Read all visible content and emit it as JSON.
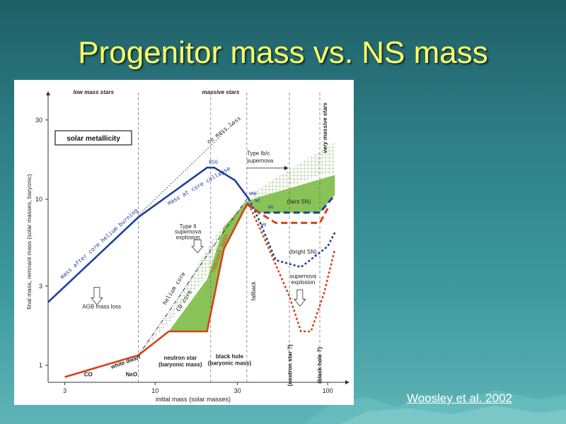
{
  "slide": {
    "title": "Progenitor mass vs. NS mass",
    "citation": "Woosley et al. 2002"
  },
  "colors": {
    "title": "#ffff66",
    "blue": "#1f3f9a",
    "red": "#d6431a",
    "green": "#7cbd45",
    "hatch": "#8bb56a"
  },
  "chart_data": {
    "type": "line",
    "xscale": "log",
    "yscale": "log",
    "xlim": [
      2.4,
      115
    ],
    "ylim": [
      0.79,
      39
    ],
    "xticks": [
      3,
      10,
      30,
      100
    ],
    "yticks": [
      1,
      3,
      10,
      30
    ],
    "xlabel": "initial mass (solar masses)",
    "ylabel": "final mass, remnant mass (solar masses, baryonic)",
    "top_labels": [
      "low mass stars",
      "massive stars",
      "very massive stars"
    ],
    "box_label": "solar metallicity",
    "vlines": [
      8,
      21,
      34,
      60,
      90
    ],
    "series": [
      {
        "name": "mass after core helium burning",
        "x": [
          2.4,
          8,
          20,
          22,
          29,
          35,
          40,
          110
        ],
        "y": [
          2.4,
          7.8,
          15.5,
          15.5,
          13,
          10,
          7.5,
          7.2
        ]
      },
      {
        "name": "no mass loss",
        "x": [
          8,
          29
        ],
        "y": [
          8,
          29
        ]
      },
      {
        "name": "remnant mass",
        "x": [
          3,
          8,
          12,
          20,
          25,
          34,
          40,
          50,
          90,
          100
        ],
        "y": [
          0.85,
          1.15,
          1.6,
          1.6,
          5,
          9.3,
          8.3,
          7.2,
          7.2,
          8.8
        ]
      },
      {
        "name": "(bright SN) WO",
        "x": [
          35,
          40,
          50,
          70,
          100,
          110
        ],
        "y": [
          10,
          7.5,
          4.3,
          3.9,
          5.2,
          6.3
        ]
      },
      {
        "name": "WNE WC WO",
        "x": [
          34,
          40,
          55,
          90,
          110
        ],
        "y": [
          9.4,
          8.3,
          8.3,
          8.3,
          10.6
        ]
      },
      {
        "name": "supernova explosion",
        "x": [
          35,
          45,
          60,
          70,
          80,
          95,
          110
        ],
        "y": [
          9.3,
          5.2,
          2.6,
          1.6,
          1.6,
          2.7,
          5
        ]
      }
    ],
    "annotations": [
      "Type Ib/c supernova",
      "(faint SN)",
      "Type II supernova explosion",
      "AGB mass loss",
      "helium core",
      "CO core",
      "remnant mass",
      "mass at core collapse",
      "RSG",
      "WNE",
      "WC",
      "WO",
      "(bright SN)",
      "supernova explosion",
      "fallback",
      "neutron star (baryonic mass)",
      "black hole (baryonic mass)",
      "(neutron star ?)",
      "(black hole ?)",
      "white dwarf",
      "CO",
      "NeO"
    ],
    "grid": false
  }
}
